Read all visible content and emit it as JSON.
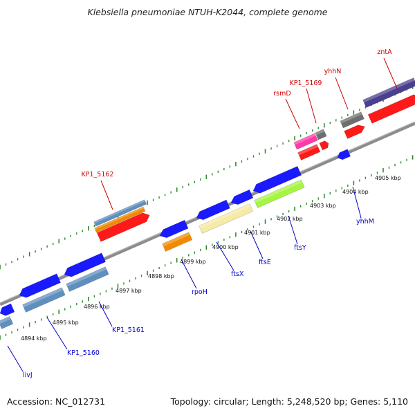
{
  "title": "Klebsiella pneumoniae NTUH-K2044, complete genome",
  "footer": {
    "accession": "Accession: NC_012731",
    "summary": "Topology: circular; Length: 5,248,520 bp; Genes: 5,110"
  },
  "colors": {
    "backbone": "#8c8c8c",
    "tick": "#2e8b2e",
    "label_forward": "#cc0000",
    "label_reverse": "#0000cc"
  },
  "ticks": [
    {
      "label": "4894 kbp",
      "kbp": 4894
    },
    {
      "label": "4895 kbp",
      "kbp": 4895
    },
    {
      "label": "4896 kbp",
      "kbp": 4896
    },
    {
      "label": "4897 kbp",
      "kbp": 4897
    },
    {
      "label": "4898 kbp",
      "kbp": 4898
    },
    {
      "label": "4899 kbp",
      "kbp": 4899
    },
    {
      "label": "4900 kbp",
      "kbp": 4900
    },
    {
      "label": "4901 kbp",
      "kbp": 4901
    },
    {
      "label": "4902 kbp",
      "kbp": 4902
    },
    {
      "label": "4903 kbp",
      "kbp": 4903
    },
    {
      "label": "4904 kbp",
      "kbp": 4904
    },
    {
      "label": "4905 kbp",
      "kbp": 4905
    }
  ],
  "gene_labels": [
    {
      "text": "livJ",
      "strand": "reverse"
    },
    {
      "text": "KP1_5160",
      "strand": "reverse"
    },
    {
      "text": "KP1_5161",
      "strand": "reverse"
    },
    {
      "text": "rpoH",
      "strand": "reverse"
    },
    {
      "text": "ftsX",
      "strand": "reverse"
    },
    {
      "text": "ftsE",
      "strand": "reverse"
    },
    {
      "text": "ftsY",
      "strand": "reverse"
    },
    {
      "text": "yhhM",
      "strand": "reverse"
    },
    {
      "text": "KP1_5162",
      "strand": "forward"
    },
    {
      "text": "rsmD",
      "strand": "forward"
    },
    {
      "text": "KP1_5169",
      "strand": "forward"
    },
    {
      "text": "yhhN",
      "strand": "forward"
    },
    {
      "text": "zntA",
      "strand": "forward"
    }
  ]
}
